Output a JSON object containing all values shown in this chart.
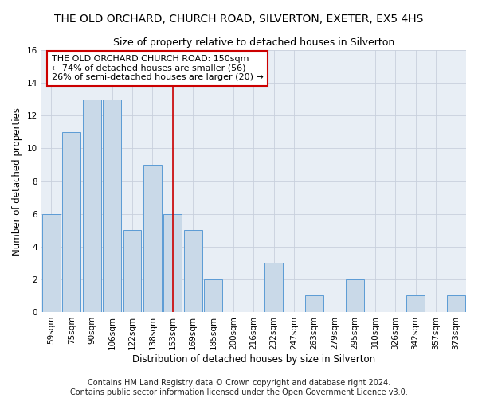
{
  "title": "THE OLD ORCHARD, CHURCH ROAD, SILVERTON, EXETER, EX5 4HS",
  "subtitle": "Size of property relative to detached houses in Silverton",
  "xlabel": "Distribution of detached houses by size in Silverton",
  "ylabel": "Number of detached properties",
  "categories": [
    "59sqm",
    "75sqm",
    "90sqm",
    "106sqm",
    "122sqm",
    "138sqm",
    "153sqm",
    "169sqm",
    "185sqm",
    "200sqm",
    "216sqm",
    "232sqm",
    "247sqm",
    "263sqm",
    "279sqm",
    "295sqm",
    "310sqm",
    "326sqm",
    "342sqm",
    "357sqm",
    "373sqm"
  ],
  "values": [
    6,
    11,
    13,
    13,
    5,
    9,
    6,
    5,
    2,
    0,
    0,
    3,
    0,
    1,
    0,
    2,
    0,
    0,
    1,
    0,
    1
  ],
  "bar_color": "#c9d9e8",
  "bar_edge_color": "#5b9bd5",
  "highlight_index": 6,
  "highlight_line_color": "#cc0000",
  "annotation_line1": "THE OLD ORCHARD CHURCH ROAD: 150sqm",
  "annotation_line2": "← 74% of detached houses are smaller (56)",
  "annotation_line3": "26% of semi-detached houses are larger (20) →",
  "annotation_box_color": "#ffffff",
  "annotation_box_edge_color": "#cc0000",
  "ylim": [
    0,
    16
  ],
  "yticks": [
    0,
    2,
    4,
    6,
    8,
    10,
    12,
    14,
    16
  ],
  "footer": "Contains HM Land Registry data © Crown copyright and database right 2024.\nContains public sector information licensed under the Open Government Licence v3.0.",
  "background_color": "#ffffff",
  "plot_bg_color": "#e8eef5",
  "grid_color": "#c8d0dc",
  "title_fontsize": 10,
  "subtitle_fontsize": 9,
  "axis_label_fontsize": 8.5,
  "tick_fontsize": 7.5,
  "annotation_fontsize": 8,
  "footer_fontsize": 7
}
